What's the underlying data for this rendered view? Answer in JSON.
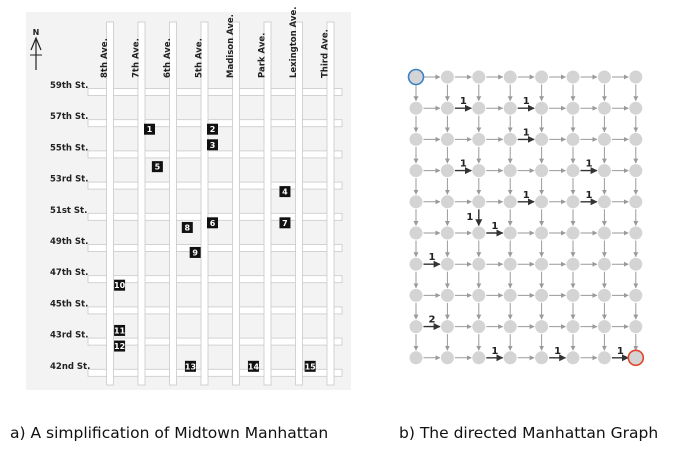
{
  "panel_a": {
    "caption": "a) A simplification of Midtown Manhattan",
    "north_label": "N",
    "avenues": [
      "8th Ave.",
      "7th Ave.",
      "6th Ave.",
      "5th Ave.",
      "Madison Ave.",
      "Park Ave.",
      "Lexington Ave.",
      "Third Ave."
    ],
    "streets": [
      "59th St.",
      "57th St.",
      "55th St.",
      "53rd St.",
      "51st St.",
      "49th St.",
      "47th St.",
      "45th St.",
      "43rd St.",
      "42nd St."
    ],
    "landmarks": [
      {
        "label": "1",
        "ave": 1,
        "street": 1
      },
      {
        "label": "2",
        "ave": 3,
        "street": 1
      },
      {
        "label": "3",
        "ave": 3,
        "street": 1.5
      },
      {
        "label": "5",
        "ave": 1.25,
        "street": 2.2
      },
      {
        "label": "4",
        "ave": 5.3,
        "street": 3
      },
      {
        "label": "8",
        "ave": 2.2,
        "street": 4.15
      },
      {
        "label": "6",
        "ave": 3,
        "street": 4
      },
      {
        "label": "7",
        "ave": 5.3,
        "street": 4
      },
      {
        "label": "9",
        "ave": 2.45,
        "street": 4.95
      },
      {
        "label": "10",
        "ave": 0.05,
        "street": 6
      },
      {
        "label": "11",
        "ave": 0.05,
        "street": 7.45
      },
      {
        "label": "12",
        "ave": 0.05,
        "street": 7.95
      },
      {
        "label": "13",
        "ave": 2.3,
        "street": 8.6
      },
      {
        "label": "14",
        "ave": 4.3,
        "street": 8.6
      },
      {
        "label": "15",
        "ave": 6.1,
        "street": 8.6
      }
    ]
  },
  "panel_b": {
    "caption": "b) The directed Manhattan Graph",
    "grid_size": 8,
    "weighted_edges": [
      {
        "row": 1,
        "col": 1,
        "dir": "right",
        "label": "1"
      },
      {
        "row": 1,
        "col": 3,
        "dir": "right",
        "label": "1"
      },
      {
        "row": 2,
        "col": 3,
        "dir": "right",
        "label": "1"
      },
      {
        "row": 3,
        "col": 1,
        "dir": "right",
        "label": "1"
      },
      {
        "row": 3,
        "col": 5,
        "dir": "right",
        "label": "1"
      },
      {
        "row": 4,
        "col": 3,
        "dir": "right",
        "label": "1"
      },
      {
        "row": 4,
        "col": 5,
        "dir": "right",
        "label": "1"
      },
      {
        "row": 4,
        "col": 2,
        "dir": "down",
        "label": "1"
      },
      {
        "row": 5,
        "col": 2,
        "dir": "right",
        "label": "1"
      },
      {
        "row": 6,
        "col": 0,
        "dir": "right",
        "label": "1"
      },
      {
        "row": 8,
        "col": 0,
        "dir": "right",
        "label": "2"
      },
      {
        "row": 9,
        "col": 2,
        "dir": "right",
        "label": "1"
      },
      {
        "row": 9,
        "col": 4,
        "dir": "right",
        "label": "1"
      },
      {
        "row": 9,
        "col": 6,
        "dir": "right",
        "label": "1"
      }
    ],
    "source_node_color": "#3b82c4",
    "sink_node_color": "#e0452b",
    "node_color": "#d4d4d4",
    "edge_color": "#9a9a9a",
    "weighted_edge_color": "#333333"
  }
}
